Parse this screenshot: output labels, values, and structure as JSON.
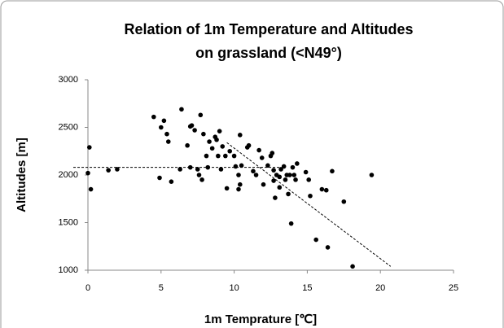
{
  "chart_data": {
    "type": "scatter",
    "title": [
      "Relation of 1m Temperature and Altitudes",
      "on grassland (<N49°)"
    ],
    "x_label": "1m Temprature [℃]",
    "y_label": "Altitudes [m]",
    "xlim": [
      0,
      25
    ],
    "xticks": [
      0,
      5,
      10,
      15,
      20,
      25
    ],
    "ylim": [
      1000,
      3000
    ],
    "yticks": [
      1000,
      1500,
      2000,
      2500,
      3000
    ],
    "grid": false,
    "series": [
      {
        "color": "#000000",
        "x": [
          0,
          0.1,
          0.2,
          1.4,
          2,
          4.5,
          4.9,
          5,
          5.2,
          5.4,
          5.5,
          5.7,
          6.3,
          6.4,
          6.8,
          7,
          7,
          7.1,
          7.3,
          7.5,
          7.6,
          7.7,
          7.8,
          7.9,
          8.1,
          8.2,
          8.3,
          8.5,
          8.7,
          8.8,
          8.9,
          9,
          9.1,
          9.2,
          9.4,
          9.5,
          9.7,
          10,
          10.1,
          10.3,
          10.3,
          10.4,
          10.4,
          10.5,
          10.9,
          11,
          11.3,
          11.5,
          11.7,
          11.9,
          12,
          12.3,
          12.5,
          12.6,
          12.7,
          12.7,
          12.8,
          12.9,
          13.1,
          13.1,
          13.2,
          13.4,
          13.5,
          13.6,
          13.7,
          13.8,
          13.9,
          14,
          14.1,
          14.2,
          14.3,
          14.9,
          15.1,
          15.2,
          15.6,
          16,
          16.3,
          16.4,
          16.7,
          17.5,
          18.1,
          19.4
        ],
        "values": [
          2020,
          2290,
          1850,
          2050,
          2060,
          2610,
          1970,
          2500,
          2570,
          2430,
          2350,
          1930,
          2060,
          2690,
          2310,
          2510,
          2080,
          2520,
          2470,
          2060,
          2000,
          2630,
          1950,
          2430,
          2200,
          2080,
          2350,
          2280,
          2400,
          2370,
          2200,
          2460,
          2060,
          2300,
          2200,
          1860,
          2250,
          2200,
          2090,
          1850,
          2000,
          1900,
          2420,
          2100,
          2290,
          2310,
          2040,
          2000,
          2260,
          2180,
          1900,
          2100,
          2200,
          2230,
          2050,
          1940,
          1760,
          2000,
          1980,
          1870,
          2060,
          2090,
          1950,
          2000,
          1800,
          2000,
          1490,
          2080,
          2000,
          1950,
          2120,
          2030,
          1950,
          1780,
          1320,
          1850,
          1840,
          1240,
          2040,
          1720,
          1040,
          2000
        ]
      }
    ],
    "trendlines": [
      {
        "color": "#000000",
        "line_style": "dashed",
        "x": [
          -1,
          13.2
        ],
        "values": [
          2080,
          2080
        ]
      },
      {
        "color": "#000000",
        "line_style": "dashed",
        "x": [
          9.5,
          20.7
        ],
        "values": [
          2340,
          1040
        ]
      }
    ]
  }
}
